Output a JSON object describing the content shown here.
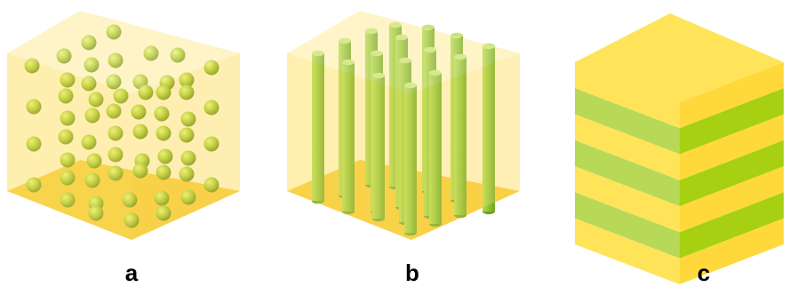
{
  "panels": [
    {
      "label": "a",
      "structure": "spheres"
    },
    {
      "label": "b",
      "structure": "cylinders"
    },
    {
      "label": "c",
      "structure": "lamellae"
    }
  ],
  "colors": {
    "matrix": "#FFE26E",
    "matrix_dark": "#F5C933",
    "phase_green": "#9FCC2E",
    "lamella_yellow": "#FFE45A",
    "lamella_green": "#B8D957"
  }
}
